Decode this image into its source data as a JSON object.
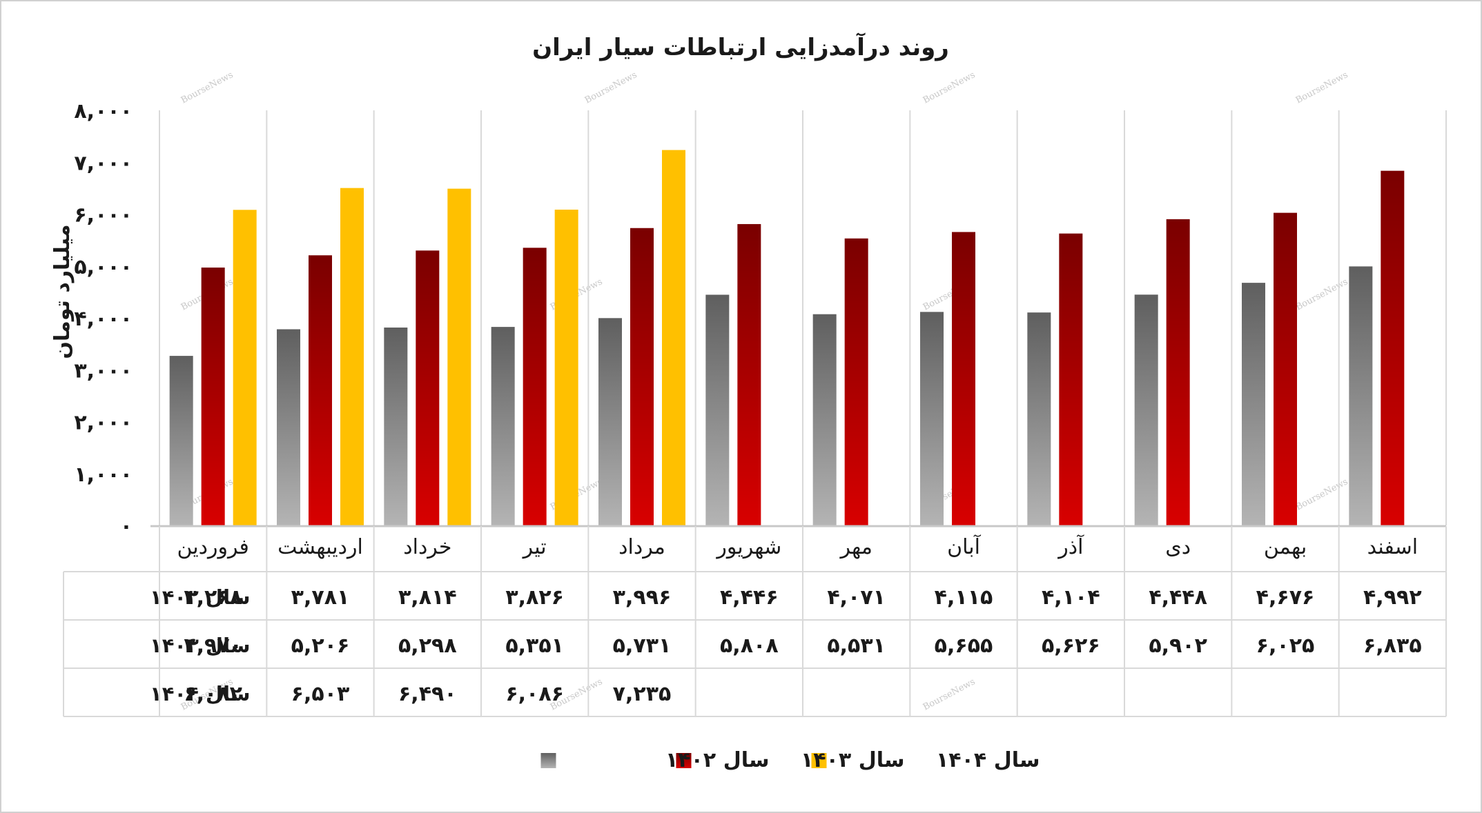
{
  "chart_data": {
    "type": "bar",
    "title": "روند درآمدزایی ارتباطات سیار ایران",
    "ylabel": "میلیارد تومان",
    "ylim": [
      0,
      8000
    ],
    "yticks": [
      0,
      1000,
      2000,
      3000,
      4000,
      5000,
      6000,
      7000,
      8000
    ],
    "ytick_labels": [
      "۰",
      "۱,۰۰۰",
      "۲,۰۰۰",
      "۳,۰۰۰",
      "۴,۰۰۰",
      "۵,۰۰۰",
      "۶,۰۰۰",
      "۷,۰۰۰",
      "۸,۰۰۰"
    ],
    "categories": [
      "فروردین",
      "اردیبهشت",
      "خرداد",
      "تیر",
      "مرداد",
      "شهریور",
      "مهر",
      "آبان",
      "آذر",
      "دی",
      "بهمن",
      "اسفند"
    ],
    "grid": true,
    "legend_position": "bottom",
    "data_table": true,
    "series": [
      {
        "name": "سال ۱۴۰۲",
        "color": "#8a8a8a",
        "values": [
          3268,
          3781,
          3814,
          3826,
          3996,
          4446,
          4071,
          4115,
          4104,
          4448,
          4676,
          4992
        ],
        "labels": [
          "۳,۲۶۸",
          "۳,۷۸۱",
          "۳,۸۱۴",
          "۳,۸۲۶",
          "۳,۹۹۶",
          "۴,۴۴۶",
          "۴,۰۷۱",
          "۴,۱۱۵",
          "۴,۱۰۴",
          "۴,۴۴۸",
          "۴,۶۷۶",
          "۴,۹۹۲"
        ]
      },
      {
        "name": "سال ۱۴۰۳",
        "color": "#b00000",
        "values": [
          4970,
          5206,
          5298,
          5351,
          5731,
          5808,
          5531,
          5655,
          5626,
          5902,
          6025,
          6835
        ],
        "labels": [
          "۴,۹۷۰",
          "۵,۲۰۶",
          "۵,۲۹۸",
          "۵,۳۵۱",
          "۵,۷۳۱",
          "۵,۸۰۸",
          "۵,۵۳۱",
          "۵,۶۵۵",
          "۵,۶۲۶",
          "۵,۹۰۲",
          "۶,۰۲۵",
          "۶,۸۳۵"
        ]
      },
      {
        "name": "سال ۱۴۰۴",
        "color": "#ffc000",
        "values": [
          6082,
          6503,
          6490,
          6086,
          7235,
          null,
          null,
          null,
          null,
          null,
          null,
          null
        ],
        "labels": [
          "۶,۰۸۲",
          "۶,۵۰۳",
          "۶,۴۹۰",
          "۶,۰۸۶",
          "۷,۲۳۵",
          "",
          "",
          "",
          "",
          "",
          "",
          ""
        ]
      }
    ]
  },
  "watermark": "BourseNews"
}
